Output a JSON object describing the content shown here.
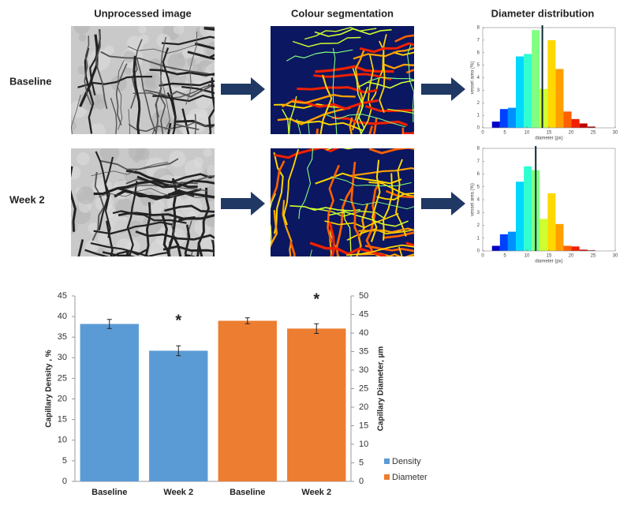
{
  "headers": [
    "Unprocessed image",
    "Colour segmentation",
    "Diameter distribution"
  ],
  "rows": [
    "Baseline",
    "Week 2"
  ],
  "chart_data": [
    {
      "type": "histogram",
      "xlabel": "diameter (px)",
      "ylabel": "vessel area (%)",
      "bins": [
        2.1,
        3.9,
        5.7,
        7.5,
        9.3,
        11.1,
        12.9,
        14.7,
        16.5,
        18.3,
        20.1,
        21.9,
        23.7,
        25.5
      ],
      "values": [
        0.5,
        1.5,
        1.6,
        5.7,
        5.9,
        7.8,
        3.1,
        7.0,
        4.7,
        1.3,
        0.7,
        0.35,
        0.1
      ],
      "colors": [
        "#0000c8",
        "#0040ff",
        "#0090ff",
        "#00d8ff",
        "#30ffd0",
        "#80ff80",
        "#d0ff30",
        "#ffd800",
        "#ffa000",
        "#ff6000",
        "#f02000",
        "#c00000",
        "#900000"
      ],
      "reference_line": 13.5,
      "xlim": [
        0,
        30
      ],
      "xticks": [
        0,
        5,
        10,
        15,
        20,
        25,
        30
      ],
      "ylim": [
        0,
        8
      ],
      "yticks": [
        0,
        1,
        2,
        3,
        4,
        5,
        6,
        7,
        8
      ]
    },
    {
      "type": "histogram",
      "xlabel": "diameter (px)",
      "ylabel": "vessel area (%)",
      "bins": [
        2.1,
        3.9,
        5.7,
        7.5,
        9.3,
        11.1,
        12.9,
        14.7,
        16.5,
        18.3,
        20.1,
        21.9,
        23.7,
        25.5
      ],
      "values": [
        0.4,
        1.3,
        1.5,
        5.4,
        6.6,
        6.3,
        2.5,
        4.5,
        2.1,
        0.4,
        0.35,
        0.1,
        0.05
      ],
      "colors": [
        "#0000c8",
        "#0040ff",
        "#0090ff",
        "#00d8ff",
        "#30ffd0",
        "#80ff80",
        "#d0ff30",
        "#ffd800",
        "#ffa000",
        "#ff6000",
        "#f02000",
        "#c00000",
        "#900000"
      ],
      "reference_line": 12,
      "xlim": [
        0,
        30
      ],
      "xticks": [
        0,
        5,
        10,
        15,
        20,
        25,
        30
      ],
      "ylim": [
        0,
        8
      ],
      "yticks": [
        0,
        1,
        2,
        3,
        4,
        5,
        6,
        7,
        8
      ]
    },
    {
      "type": "bar",
      "ylabel": "Capillary Density , %",
      "y2label": "Capillary Diameter, µm",
      "categories": [
        "Baseline",
        "Week 2",
        "Baseline",
        "Week 2"
      ],
      "series": [
        {
          "name": "Density",
          "color": "#5b9bd5",
          "values": [
            38.2,
            31.7,
            null,
            null
          ],
          "errors": [
            1.1,
            1.2,
            null,
            null
          ]
        },
        {
          "name": "Diameter",
          "color": "#ed7d31",
          "axis": "y2",
          "values": [
            null,
            null,
            43.3,
            41.2
          ],
          "errors": [
            null,
            null,
            0.8,
            1.3
          ]
        }
      ],
      "annotations": [
        "*",
        "*"
      ],
      "ylim": [
        0,
        45
      ],
      "yticks": [
        0,
        5,
        10,
        15,
        20,
        25,
        30,
        35,
        40,
        45
      ],
      "y2lim": [
        0,
        50
      ],
      "y2ticks": [
        0,
        5,
        10,
        15,
        20,
        25,
        30,
        35,
        40,
        45,
        50
      ]
    }
  ]
}
